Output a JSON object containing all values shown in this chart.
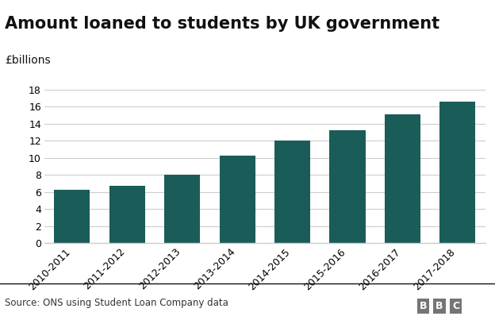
{
  "title": "Amount loaned to students by UK government",
  "ylabel": "£billions",
  "categories": [
    "2010-2011",
    "2011-2012",
    "2012-2013",
    "2013-2014",
    "2014-2015",
    "2015-2016",
    "2016-2017",
    "2017-2018"
  ],
  "values": [
    6.3,
    6.7,
    8.0,
    10.3,
    12.0,
    13.2,
    15.1,
    16.6
  ],
  "bar_color": "#1a5c58",
  "background_color": "#ffffff",
  "ylim": [
    0,
    18
  ],
  "yticks": [
    0,
    2,
    4,
    6,
    8,
    10,
    12,
    14,
    16,
    18
  ],
  "grid_color": "#cccccc",
  "source_text": "Source: ONS using Student Loan Company data",
  "bbc_text": "BBC",
  "title_fontsize": 15,
  "ylabel_fontsize": 10,
  "tick_fontsize": 9,
  "source_fontsize": 8.5,
  "bar_width": 0.65,
  "spine_color": "#cccccc",
  "bbc_bg_color": "#757575"
}
